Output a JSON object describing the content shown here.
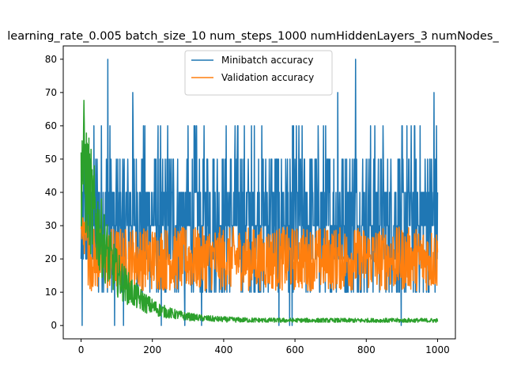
{
  "chart_data": {
    "type": "line",
    "title": "learning_rate_0.005 batch_size_10 num_steps_1000 numHiddenLayers_3 numNodes_",
    "xlabel": "",
    "ylabel": "",
    "xlim": [
      -50,
      1050
    ],
    "ylim": [
      -4,
      84
    ],
    "xticks": [
      0,
      200,
      400,
      600,
      800,
      1000
    ],
    "yticks": [
      0,
      10,
      20,
      30,
      40,
      50,
      60,
      70,
      80
    ],
    "grid": false,
    "legend": "upper center",
    "series": [
      {
        "name": "Minibatch accuracy",
        "color": "#1f77b4",
        "kind": "sampled-steps",
        "steps": 1001,
        "levels": [
          0,
          10,
          20,
          30,
          40,
          50,
          60,
          70,
          80
        ],
        "typical_range": [
          10,
          50
        ],
        "peaks": [
          [
            75,
            80
          ],
          [
            770,
            80
          ],
          [
            145,
            70
          ],
          [
            720,
            70
          ],
          [
            990,
            70
          ]
        ],
        "y_start": 20,
        "y_end": 40
      },
      {
        "name": "Validation accuracy",
        "color": "#ff7f0e",
        "kind": "noisy",
        "steps": 1001,
        "y_start": 29,
        "y_peak_early": 36,
        "mean": 20,
        "noise": 6,
        "y_end": 22
      },
      {
        "name": "",
        "color": "#2ca02c",
        "kind": "decay",
        "steps": 1001,
        "y_start": 52,
        "y_peak_early": 53,
        "y_floor": 1.5,
        "decay_steps": 80
      }
    ]
  }
}
